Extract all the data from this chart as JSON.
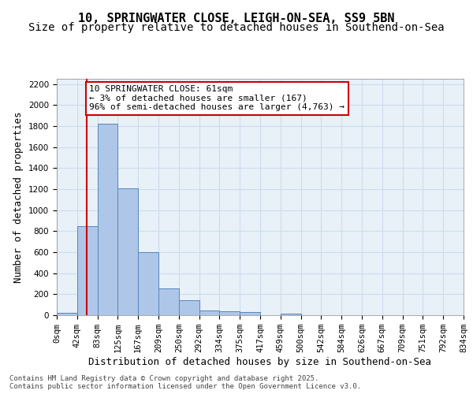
{
  "title_line1": "10, SPRINGWATER CLOSE, LEIGH-ON-SEA, SS9 5BN",
  "title_line2": "Size of property relative to detached houses in Southend-on-Sea",
  "xlabel": "Distribution of detached houses by size in Southend-on-Sea",
  "ylabel": "Number of detached properties",
  "bin_labels": [
    "0sqm",
    "42sqm",
    "83sqm",
    "125sqm",
    "167sqm",
    "209sqm",
    "250sqm",
    "292sqm",
    "334sqm",
    "375sqm",
    "417sqm",
    "459sqm",
    "500sqm",
    "542sqm",
    "584sqm",
    "626sqm",
    "667sqm",
    "709sqm",
    "751sqm",
    "792sqm",
    "834sqm"
  ],
  "bar_values": [
    20,
    845,
    1820,
    1210,
    600,
    255,
    140,
    45,
    40,
    28,
    0,
    12,
    0,
    0,
    0,
    0,
    0,
    0,
    0,
    0
  ],
  "bar_color": "#aec6e8",
  "bar_edge_color": "#5588bb",
  "vline_color": "#cc0000",
  "annotation_text": "10 SPRINGWATER CLOSE: 61sqm\n← 3% of detached houses are smaller (167)\n96% of semi-detached houses are larger (4,763) →",
  "annotation_box_color": "#ffffff",
  "annotation_box_edge": "#cc0000",
  "ylim": [
    0,
    2250
  ],
  "yticks": [
    0,
    200,
    400,
    600,
    800,
    1000,
    1200,
    1400,
    1600,
    1800,
    2000,
    2200
  ],
  "grid_color": "#ccddee",
  "background_color": "#e8f0f8",
  "footer_text": "Contains HM Land Registry data © Crown copyright and database right 2025.\nContains public sector information licensed under the Open Government Licence v3.0.",
  "title_fontsize": 11,
  "subtitle_fontsize": 10,
  "label_fontsize": 9,
  "tick_fontsize": 7.5,
  "annotation_fontsize": 8
}
